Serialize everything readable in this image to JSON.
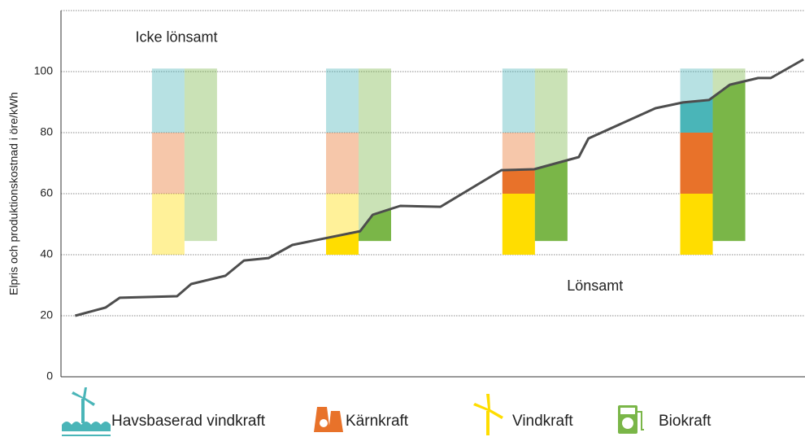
{
  "chart_data": {
    "type": "floating-bar-line",
    "ylabel": "Elpris och produktionskostnad i öre/kWh",
    "ylim": [
      0,
      120
    ],
    "yticks": [
      0,
      20,
      40,
      60,
      80,
      100
    ],
    "xlim": [
      0,
      100
    ],
    "grid": true,
    "annotations": [
      {
        "text": "Icke lönsamt",
        "x": 10,
        "y": 111
      },
      {
        "text": "Lönsamt",
        "x": 68,
        "y": 29.5
      }
    ],
    "bar_x": [
      16.6,
      40.0,
      63.7,
      87.6
    ],
    "bar_base": [
      40,
      40,
      40,
      40
    ],
    "bio_base": [
      44.5,
      44.5,
      44.5,
      44.5
    ],
    "series": [
      {
        "name": "Havsbaserad vindkraft",
        "color": "#4ab5b8",
        "values": [
          21,
          21,
          21,
          21
        ]
      },
      {
        "name": "Kärnkraft",
        "color": "#e8722a",
        "values": [
          20,
          20,
          20,
          20
        ]
      },
      {
        "name": "Vindkraft",
        "color": "#ffdd00",
        "values": [
          20,
          20,
          20,
          20
        ]
      },
      {
        "name": "Biokraft",
        "color": "#7ab648",
        "values": [
          56.5,
          56.5,
          56.5,
          56.5
        ]
      }
    ],
    "price_line": {
      "color": "#4d4d4d",
      "x": [
        1.9,
        6.0,
        7.9,
        15.6,
        17.5,
        22.1,
        24.6,
        27.9,
        31.1,
        40.2,
        41.9,
        45.6,
        51.0,
        59.2,
        63.6,
        69.6,
        70.9,
        79.9,
        83.6,
        87.1,
        89.9,
        93.7,
        95.4,
        99.8
      ],
      "values": [
        20,
        22.7,
        25.9,
        26.4,
        30.4,
        33.1,
        38.1,
        38.9,
        43.2,
        47.7,
        53.1,
        56,
        55.7,
        67.7,
        68,
        72,
        78.1,
        88,
        89.9,
        90.7,
        95.7,
        97.9,
        97.9,
        104
      ]
    }
  }
}
